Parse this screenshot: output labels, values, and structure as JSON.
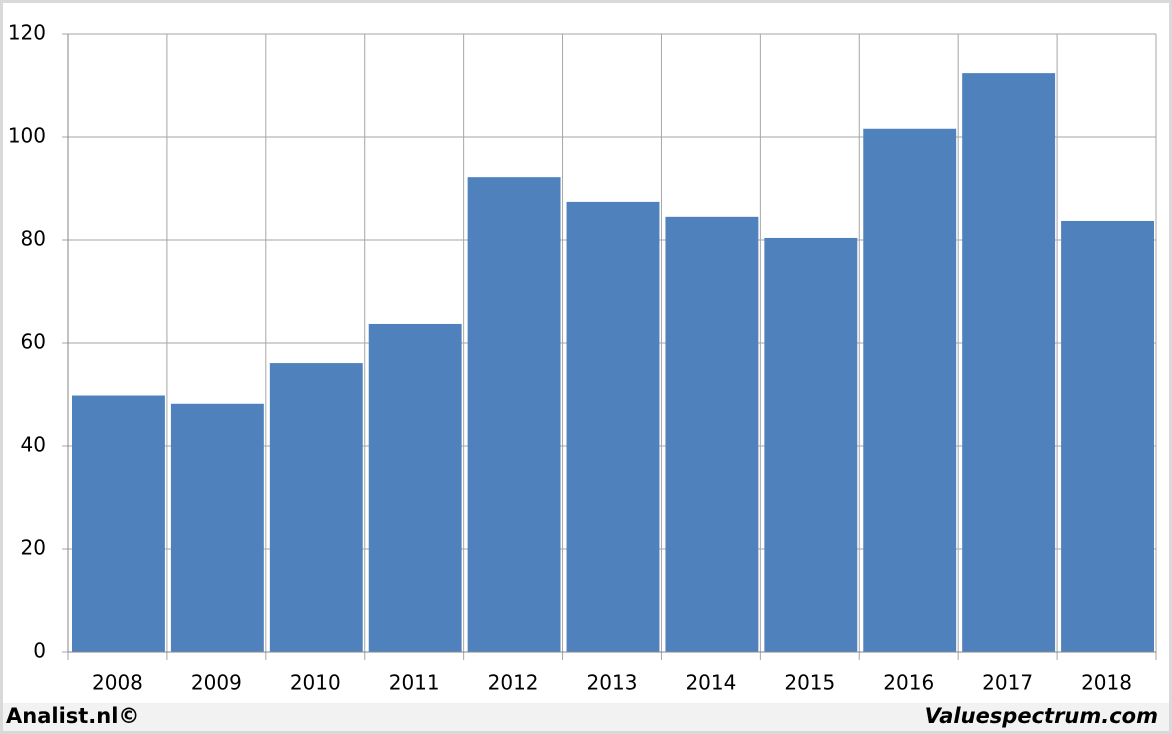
{
  "chart_data": {
    "type": "bar",
    "categories": [
      "2008",
      "2009",
      "2010",
      "2011",
      "2012",
      "2013",
      "2014",
      "2015",
      "2016",
      "2017",
      "2018"
    ],
    "values": [
      49.8,
      48.2,
      56.1,
      63.7,
      92.2,
      87.4,
      84.5,
      80.4,
      101.6,
      112.4,
      83.7
    ],
    "color": "#4f81bd",
    "ylim": [
      0,
      120
    ],
    "yticks": [
      0,
      20,
      40,
      60,
      80,
      100,
      120
    ],
    "grid": true
  },
  "footer": {
    "left": "Analist.nl©",
    "right": "Valuespectrum.com"
  }
}
